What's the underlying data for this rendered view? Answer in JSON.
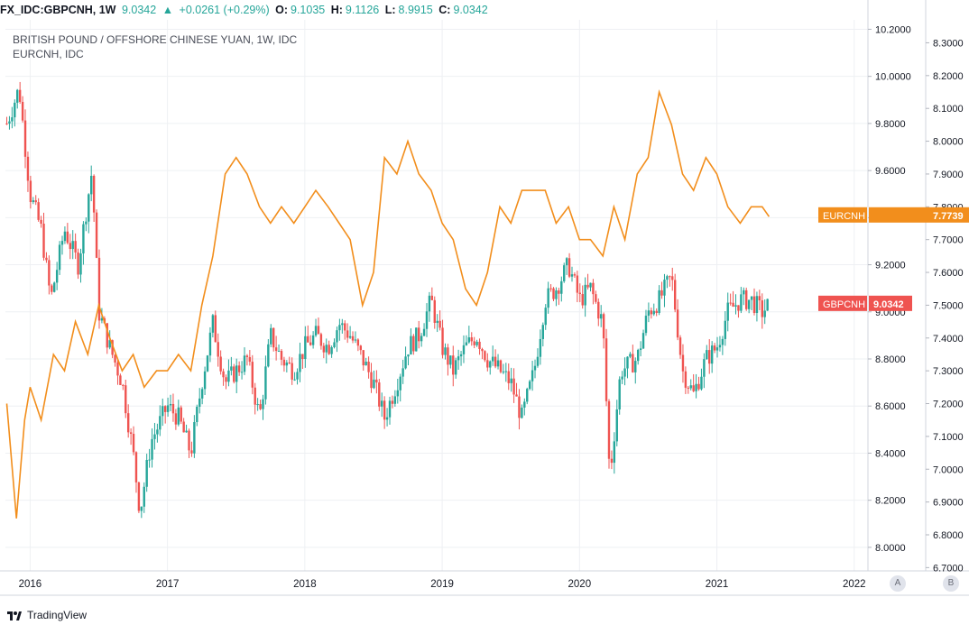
{
  "header": {
    "symbol": "FX_IDC:GBPCNH, 1W",
    "price": "9.0342",
    "arrow": "▲",
    "change": "+0.0261 (+0.29%)",
    "o_label": "O:",
    "o_value": "9.1035",
    "h_label": "H:",
    "h_value": "9.1126",
    "l_label": "L:",
    "l_value": "8.9915",
    "c_label": "C:",
    "c_value": "9.0342"
  },
  "footer": {
    "logo_text": "TradingView",
    "scale_a": "A",
    "scale_b": "B"
  },
  "colors": {
    "up": "#26a69a",
    "down": "#ef5350",
    "line": "#f28e1c",
    "gbp_tag": "#ef5350",
    "eur_tag": "#f28e1c",
    "grid": "#eef0f3"
  },
  "chart_data": {
    "type": "candlestick",
    "title": "BRITISH POUND / OFFSHORE CHINESE YUAN, 1W, IDC",
    "subtitle": "EURCNH, IDC",
    "x_ticks": [
      "2016",
      "2017",
      "2018",
      "2019",
      "2020",
      "2021",
      "2022"
    ],
    "x_range": [
      2015.82,
      2022.1
    ],
    "left_axis": {
      "label": "GBPCNH",
      "range": [
        7.9,
        10.24
      ],
      "ticks": [
        "8.0000",
        "8.2000",
        "8.4000",
        "8.6000",
        "8.8000",
        "9.0000",
        "9.2000",
        "9.4000",
        "9.6000",
        "9.8000",
        "10.0000",
        "10.2000"
      ]
    },
    "right_axis": {
      "label": "EURCNH",
      "range": [
        6.69,
        8.37
      ],
      "ticks": [
        "6.7000",
        "6.8000",
        "6.9000",
        "7.0000",
        "7.1000",
        "7.2000",
        "7.3000",
        "7.4000",
        "7.5000",
        "7.6000",
        "7.7000",
        "7.8000",
        "7.9000",
        "8.0000",
        "8.1000",
        "8.2000",
        "8.3000"
      ]
    },
    "series": [
      {
        "name": "GBPCNH",
        "style": "candles",
        "last_label": "GBPCNH",
        "last_value": "9.0342",
        "points": [
          [
            2015.83,
            9.8
          ],
          [
            2015.92,
            9.95
          ],
          [
            2016.0,
            9.5
          ],
          [
            2016.08,
            9.35
          ],
          [
            2016.15,
            9.05
          ],
          [
            2016.25,
            9.35
          ],
          [
            2016.35,
            9.2
          ],
          [
            2016.45,
            9.6
          ],
          [
            2016.5,
            9.0
          ],
          [
            2016.58,
            8.85
          ],
          [
            2016.67,
            8.7
          ],
          [
            2016.75,
            8.4
          ],
          [
            2016.8,
            8.15
          ],
          [
            2016.88,
            8.45
          ],
          [
            2017.0,
            8.6
          ],
          [
            2017.08,
            8.55
          ],
          [
            2017.17,
            8.4
          ],
          [
            2017.25,
            8.7
          ],
          [
            2017.33,
            8.95
          ],
          [
            2017.42,
            8.7
          ],
          [
            2017.5,
            8.75
          ],
          [
            2017.58,
            8.8
          ],
          [
            2017.67,
            8.55
          ],
          [
            2017.75,
            8.9
          ],
          [
            2017.83,
            8.8
          ],
          [
            2017.92,
            8.75
          ],
          [
            2018.0,
            8.85
          ],
          [
            2018.08,
            8.9
          ],
          [
            2018.17,
            8.85
          ],
          [
            2018.25,
            8.95
          ],
          [
            2018.33,
            8.9
          ],
          [
            2018.42,
            8.8
          ],
          [
            2018.5,
            8.7
          ],
          [
            2018.58,
            8.55
          ],
          [
            2018.67,
            8.7
          ],
          [
            2018.75,
            8.85
          ],
          [
            2018.83,
            8.9
          ],
          [
            2018.92,
            9.05
          ],
          [
            2019.0,
            8.85
          ],
          [
            2019.08,
            8.75
          ],
          [
            2019.17,
            8.85
          ],
          [
            2019.25,
            8.9
          ],
          [
            2019.33,
            8.8
          ],
          [
            2019.42,
            8.75
          ],
          [
            2019.5,
            8.7
          ],
          [
            2019.58,
            8.55
          ],
          [
            2019.67,
            8.75
          ],
          [
            2019.75,
            9.05
          ],
          [
            2019.83,
            9.1
          ],
          [
            2019.92,
            9.2
          ],
          [
            2020.0,
            9.05
          ],
          [
            2020.08,
            9.1
          ],
          [
            2020.17,
            8.95
          ],
          [
            2020.22,
            8.3
          ],
          [
            2020.3,
            8.75
          ],
          [
            2020.42,
            8.8
          ],
          [
            2020.5,
            9.0
          ],
          [
            2020.58,
            9.05
          ],
          [
            2020.67,
            9.15
          ],
          [
            2020.75,
            8.75
          ],
          [
            2020.83,
            8.65
          ],
          [
            2020.92,
            8.8
          ],
          [
            2021.0,
            8.85
          ],
          [
            2021.08,
            9.0
          ],
          [
            2021.17,
            9.05
          ],
          [
            2021.25,
            9.05
          ],
          [
            2021.33,
            9.0
          ],
          [
            2021.38,
            9.03
          ]
        ]
      },
      {
        "name": "EURCNH",
        "style": "line",
        "last_label": "EURCNH",
        "last_value": "7.7739",
        "points": [
          [
            2015.83,
            7.2
          ],
          [
            2015.9,
            6.85
          ],
          [
            2015.96,
            7.15
          ],
          [
            2016.0,
            7.25
          ],
          [
            2016.08,
            7.15
          ],
          [
            2016.17,
            7.35
          ],
          [
            2016.25,
            7.3
          ],
          [
            2016.33,
            7.45
          ],
          [
            2016.42,
            7.35
          ],
          [
            2016.5,
            7.5
          ],
          [
            2016.58,
            7.4
          ],
          [
            2016.67,
            7.3
          ],
          [
            2016.75,
            7.35
          ],
          [
            2016.83,
            7.25
          ],
          [
            2016.92,
            7.3
          ],
          [
            2017.0,
            7.3
          ],
          [
            2017.08,
            7.35
          ],
          [
            2017.17,
            7.3
          ],
          [
            2017.25,
            7.5
          ],
          [
            2017.33,
            7.65
          ],
          [
            2017.42,
            7.9
          ],
          [
            2017.5,
            7.95
          ],
          [
            2017.58,
            7.9
          ],
          [
            2017.67,
            7.8
          ],
          [
            2017.75,
            7.75
          ],
          [
            2017.83,
            7.8
          ],
          [
            2017.92,
            7.75
          ],
          [
            2018.0,
            7.8
          ],
          [
            2018.08,
            7.85
          ],
          [
            2018.17,
            7.8
          ],
          [
            2018.25,
            7.75
          ],
          [
            2018.33,
            7.7
          ],
          [
            2018.42,
            7.5
          ],
          [
            2018.5,
            7.6
          ],
          [
            2018.58,
            7.95
          ],
          [
            2018.67,
            7.9
          ],
          [
            2018.75,
            8.0
          ],
          [
            2018.83,
            7.9
          ],
          [
            2018.92,
            7.85
          ],
          [
            2019.0,
            7.75
          ],
          [
            2019.08,
            7.7
          ],
          [
            2019.17,
            7.55
          ],
          [
            2019.25,
            7.5
          ],
          [
            2019.33,
            7.6
          ],
          [
            2019.42,
            7.8
          ],
          [
            2019.5,
            7.75
          ],
          [
            2019.58,
            7.85
          ],
          [
            2019.67,
            7.85
          ],
          [
            2019.75,
            7.85
          ],
          [
            2019.83,
            7.75
          ],
          [
            2019.92,
            7.8
          ],
          [
            2020.0,
            7.7
          ],
          [
            2020.08,
            7.7
          ],
          [
            2020.17,
            7.65
          ],
          [
            2020.25,
            7.8
          ],
          [
            2020.33,
            7.7
          ],
          [
            2020.42,
            7.9
          ],
          [
            2020.5,
            7.95
          ],
          [
            2020.58,
            8.15
          ],
          [
            2020.67,
            8.05
          ],
          [
            2020.75,
            7.9
          ],
          [
            2020.83,
            7.85
          ],
          [
            2020.92,
            7.95
          ],
          [
            2021.0,
            7.9
          ],
          [
            2021.08,
            7.8
          ],
          [
            2021.17,
            7.75
          ],
          [
            2021.25,
            7.8
          ],
          [
            2021.33,
            7.8
          ],
          [
            2021.38,
            7.77
          ]
        ]
      }
    ]
  }
}
